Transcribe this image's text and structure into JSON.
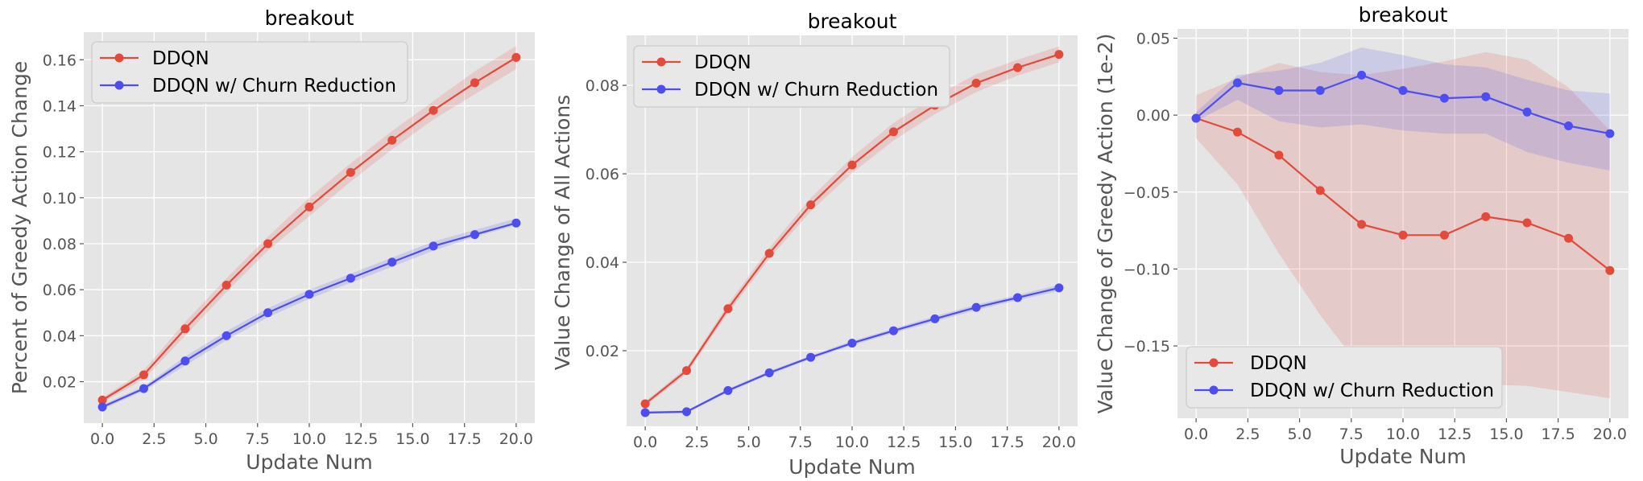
{
  "figure": {
    "colors": {
      "ddqn": "#e24a3b",
      "churn": "#4d4df0",
      "panel_bg": "#e5e5e5",
      "grid": "#ffffff"
    }
  },
  "chart_data": [
    {
      "type": "line",
      "title": "breakout",
      "xlabel": "Update Num",
      "ylabel": "Percent of Greedy Action Change",
      "xlim": [
        -0.9,
        20.9
      ],
      "ylim": [
        0.002,
        0.172
      ],
      "xticks": [
        0.0,
        2.5,
        5.0,
        7.5,
        10.0,
        12.5,
        15.0,
        17.5,
        20.0
      ],
      "xtick_labels": [
        "0.0",
        "2.5",
        "5.0",
        "7.5",
        "10.0",
        "12.5",
        "15.0",
        "17.5",
        "20.0"
      ],
      "yticks": [
        0.02,
        0.04,
        0.06,
        0.08,
        0.1,
        0.12,
        0.14,
        0.16
      ],
      "ytick_labels": [
        "0.02",
        "0.04",
        "0.06",
        "0.08",
        "0.10",
        "0.12",
        "0.14",
        "0.16"
      ],
      "grid": true,
      "legend_position": "top-left",
      "x": [
        0,
        2,
        4,
        6,
        8,
        10,
        12,
        14,
        16,
        18,
        20
      ],
      "series": [
        {
          "name": "DDQN",
          "color": "#e24a3b",
          "values": [
            0.012,
            0.023,
            0.043,
            0.062,
            0.08,
            0.096,
            0.111,
            0.125,
            0.138,
            0.15,
            0.161
          ],
          "lower": [
            0.011,
            0.021,
            0.04,
            0.059,
            0.077,
            0.092,
            0.107,
            0.121,
            0.134,
            0.145,
            0.156
          ],
          "upper": [
            0.013,
            0.025,
            0.046,
            0.065,
            0.083,
            0.1,
            0.115,
            0.129,
            0.142,
            0.155,
            0.166
          ]
        },
        {
          "name": "DDQN w/ Churn Reduction",
          "color": "#4d4df0",
          "values": [
            0.009,
            0.017,
            0.029,
            0.04,
            0.05,
            0.058,
            0.065,
            0.072,
            0.079,
            0.084,
            0.089
          ],
          "lower": [
            0.008,
            0.016,
            0.027,
            0.038,
            0.048,
            0.056,
            0.063,
            0.07,
            0.077,
            0.083,
            0.088
          ],
          "upper": [
            0.01,
            0.018,
            0.031,
            0.042,
            0.052,
            0.06,
            0.067,
            0.074,
            0.081,
            0.086,
            0.091
          ]
        }
      ]
    },
    {
      "type": "line",
      "title": "breakout",
      "xlabel": "Update Num",
      "ylabel": "Value Change of All Actions",
      "xlim": [
        -0.9,
        20.9
      ],
      "ylim": [
        0.0029,
        0.0913
      ],
      "xticks": [
        0.0,
        2.5,
        5.0,
        7.5,
        10.0,
        12.5,
        15.0,
        17.5,
        20.0
      ],
      "xtick_labels": [
        "0.0",
        "2.5",
        "5.0",
        "7.5",
        "10.0",
        "12.5",
        "15.0",
        "17.5",
        "20.0"
      ],
      "yticks": [
        0.02,
        0.04,
        0.06,
        0.08
      ],
      "ytick_labels": [
        "0.02",
        "0.04",
        "0.06",
        "0.08"
      ],
      "grid": true,
      "legend_position": "top-left",
      "x": [
        0,
        2,
        4,
        6,
        8,
        10,
        12,
        14,
        16,
        18,
        20
      ],
      "series": [
        {
          "name": "DDQN",
          "color": "#e24a3b",
          "values": [
            0.008,
            0.0155,
            0.0295,
            0.042,
            0.053,
            0.062,
            0.0695,
            0.0755,
            0.0805,
            0.084,
            0.087
          ],
          "lower": [
            0.0075,
            0.0148,
            0.0285,
            0.0408,
            0.0515,
            0.0602,
            0.0675,
            0.0735,
            0.0785,
            0.0822,
            0.0852
          ],
          "upper": [
            0.0085,
            0.0162,
            0.0305,
            0.0432,
            0.0545,
            0.0638,
            0.0715,
            0.0775,
            0.0825,
            0.0858,
            0.0888
          ]
        },
        {
          "name": "DDQN w/ Churn Reduction",
          "color": "#4d4df0",
          "values": [
            0.006,
            0.0062,
            0.011,
            0.015,
            0.0185,
            0.0217,
            0.0245,
            0.0272,
            0.0298,
            0.032,
            0.0342
          ],
          "lower": [
            0.0057,
            0.0059,
            0.0106,
            0.0146,
            0.0181,
            0.0212,
            0.024,
            0.0266,
            0.0292,
            0.0314,
            0.0335
          ],
          "upper": [
            0.0063,
            0.0065,
            0.0114,
            0.0154,
            0.0189,
            0.0222,
            0.025,
            0.0278,
            0.0304,
            0.0326,
            0.0349
          ]
        }
      ]
    },
    {
      "type": "line",
      "title": "breakout",
      "xlabel": "Update Num",
      "ylabel": "Value Change of Greedy Action (1e-2)",
      "xlim": [
        -0.9,
        20.9
      ],
      "ylim": [
        -0.197,
        0.056
      ],
      "xticks": [
        0.0,
        2.5,
        5.0,
        7.5,
        10.0,
        12.5,
        15.0,
        17.5,
        20.0
      ],
      "xtick_labels": [
        "0.0",
        "2.5",
        "5.0",
        "7.5",
        "10.0",
        "12.5",
        "15.0",
        "17.5",
        "20.0"
      ],
      "yticks": [
        0.05,
        0.0,
        -0.05,
        -0.1,
        -0.15
      ],
      "ytick_labels": [
        "0.05",
        "0.00",
        "−0.05",
        "−0.10",
        "−0.15"
      ],
      "grid": true,
      "legend_position": "bottom-left",
      "x": [
        0,
        2,
        4,
        6,
        8,
        10,
        12,
        14,
        16,
        18,
        20
      ],
      "series": [
        {
          "name": "DDQN",
          "color": "#e24a3b",
          "values": [
            -0.002,
            -0.011,
            -0.026,
            -0.049,
            -0.071,
            -0.078,
            -0.078,
            -0.066,
            -0.07,
            -0.08,
            -0.101
          ],
          "lower": [
            -0.015,
            -0.045,
            -0.09,
            -0.13,
            -0.165,
            -0.178,
            -0.178,
            -0.175,
            -0.176,
            -0.18,
            -0.184
          ],
          "upper": [
            0.013,
            0.024,
            0.034,
            0.028,
            0.026,
            0.03,
            0.035,
            0.041,
            0.036,
            0.018,
            -0.01
          ]
        },
        {
          "name": "DDQN w/ Churn Reduction",
          "color": "#4d4df0",
          "values": [
            -0.002,
            0.021,
            0.016,
            0.016,
            0.026,
            0.016,
            0.011,
            0.012,
            0.002,
            -0.007,
            -0.012
          ],
          "lower": [
            -0.004,
            0.01,
            -0.004,
            -0.008,
            -0.006,
            -0.01,
            -0.012,
            -0.012,
            -0.024,
            -0.031,
            -0.036
          ],
          "upper": [
            0.002,
            0.026,
            0.029,
            0.034,
            0.044,
            0.039,
            0.033,
            0.031,
            0.023,
            0.016,
            0.014
          ]
        }
      ]
    }
  ]
}
